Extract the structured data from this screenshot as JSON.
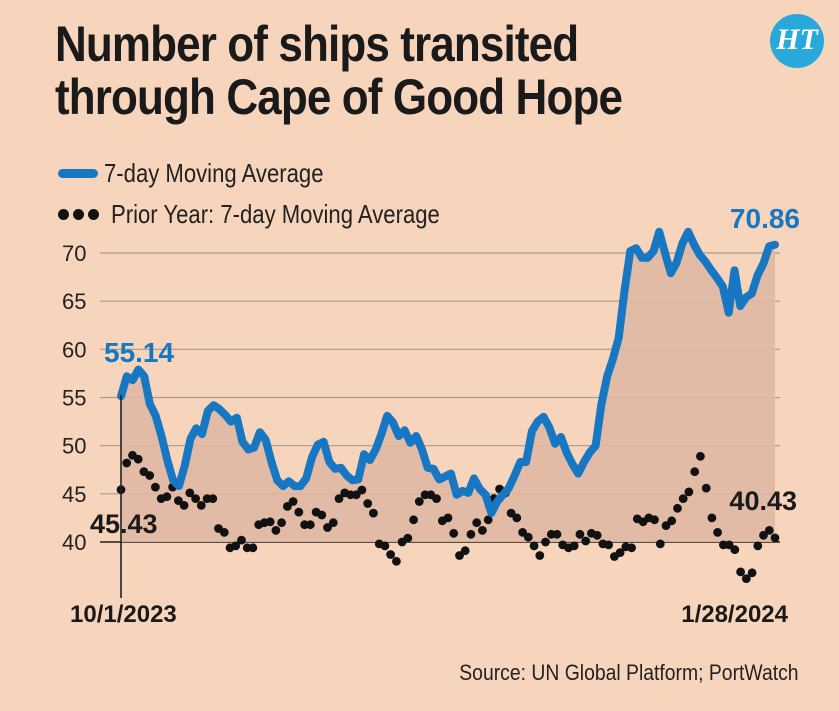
{
  "header": {
    "title_line1": "Number of ships transited",
    "title_line2": "through Cape of Good Hope",
    "logo_text": "HT"
  },
  "footer": {
    "source": "Source: UN Global Platform; PortWatch"
  },
  "colors": {
    "background": "#f7d5bd",
    "current_line": "#1777c2",
    "current_area": "#dfb8a3",
    "prior_dots": "#111111",
    "grid": "#a89a90",
    "logo_bg": "#28a9d9"
  },
  "chart_data": {
    "type": "line",
    "x_range": [
      "10/1/2023",
      "1/28/2024"
    ],
    "x_tick_labels": [
      "10/1/2023",
      "1/28/2024"
    ],
    "y_ticks": [
      40,
      45,
      50,
      55,
      60,
      65,
      70
    ],
    "ylim": [
      37,
      72
    ],
    "grid": "horizontal",
    "legend_position": "top-left",
    "series": [
      {
        "name": "7-day Moving Average",
        "style": "line-area",
        "values": [
          55.14,
          57.2,
          56.8,
          57.9,
          57.2,
          54.3,
          53.1,
          51,
          48.5,
          46.4,
          45.8,
          47.9,
          50.7,
          51.8,
          51.2,
          53.6,
          54.2,
          53.8,
          53.2,
          52.5,
          52.9,
          50.4,
          49.6,
          49.8,
          51.4,
          50.6,
          48.3,
          46.4,
          45.8,
          46.3,
          45.8,
          45.8,
          46.6,
          48.8,
          50.1,
          50.4,
          48.3,
          47.6,
          47.7,
          46.9,
          46.4,
          46.5,
          49.1,
          48.5,
          49.6,
          51.2,
          53.1,
          52.4,
          51,
          51.6,
          50.3,
          51,
          49.6,
          47.7,
          47.6,
          46.5,
          46.8,
          47.1,
          44.9,
          45.3,
          45.1,
          46.6,
          45.5,
          44.9,
          43,
          44.2,
          44.9,
          45.6,
          46.9,
          48.3,
          48.3,
          51.5,
          52.5,
          53,
          51.9,
          50.2,
          50.9,
          49.3,
          48.1,
          47.1,
          48.3,
          49.3,
          50,
          54.3,
          57.2,
          59,
          61.2,
          66.1,
          70.2,
          70.5,
          69.5,
          69.5,
          70.2,
          72.2,
          70,
          67.9,
          69,
          71,
          72.2,
          70.9,
          69.8,
          69.1,
          68.2,
          67.4,
          66.5,
          63.8,
          68.2,
          64.5,
          65.4,
          65.8,
          67.7,
          68.9,
          70.7,
          70.86
        ]
      },
      {
        "name": "Prior Year: 7-day Moving Average",
        "style": "dots",
        "values": [
          45.43,
          48.2,
          49,
          48.6,
          47.3,
          46.9,
          45.7,
          44.5,
          44.7,
          45.7,
          44.3,
          43.8,
          45.1,
          44.5,
          43.8,
          44.5,
          44.5,
          41.4,
          41,
          39.4,
          39.6,
          40.2,
          39.4,
          39.4,
          41.8,
          42,
          42.1,
          41.2,
          42,
          43.7,
          44.2,
          43.1,
          41.8,
          41.8,
          43.1,
          42.8,
          41.5,
          42,
          44.5,
          45.1,
          44.9,
          44.9,
          45.4,
          44,
          43,
          39.8,
          39.6,
          38.7,
          38,
          40,
          40.4,
          42.3,
          44.2,
          44.9,
          44.9,
          44.5,
          42.2,
          42.5,
          40.9,
          38.6,
          39.1,
          40.8,
          42,
          41.2,
          42.3,
          44.5,
          45.5,
          45.1,
          43,
          42.5,
          41,
          40.5,
          39.6,
          38.6,
          40,
          40.8,
          40.8,
          39.7,
          39.4,
          39.6,
          40.8,
          40.1,
          40.9,
          40.7,
          39.8,
          39.7,
          38.5,
          38.9,
          39.5,
          39.4,
          42.4,
          42.1,
          42.5,
          42.3,
          39.8,
          41.7,
          42.2,
          43.5,
          44.5,
          45.2,
          47.3,
          48.9,
          45.6,
          42.5,
          41,
          39.7,
          39.7,
          39.2,
          36.9,
          36.2,
          36.8,
          39.6,
          40.7,
          41.2,
          40.43
        ]
      }
    ],
    "annotations": {
      "current_start": "55.14",
      "current_end": "70.86",
      "prior_start": "45.43",
      "prior_end": "40.43"
    },
    "legend": {
      "current_label": "7-day Moving Average",
      "prior_label": "Prior Year: 7-day Moving Average"
    }
  }
}
